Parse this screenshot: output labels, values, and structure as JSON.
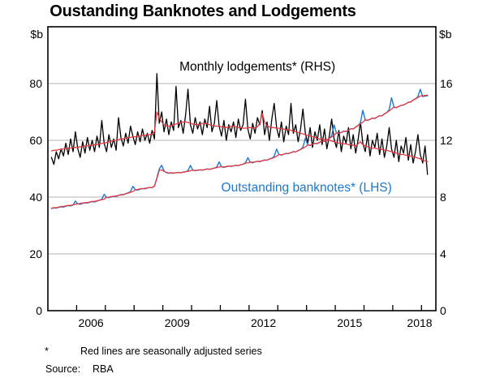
{
  "title": "Oustanding Banknotes and Lodgements",
  "footnote": {
    "symbol": "*",
    "text": "Red lines are seasonally adjusted series"
  },
  "source": {
    "label": "Source:",
    "value": "RBA"
  },
  "colors": {
    "blue": "#1e78cc",
    "red": "#e63940",
    "black": "#000000",
    "grid": "#b0b0b0",
    "axis": "#000000"
  },
  "chart_data": {
    "type": "line",
    "title": "Oustanding Banknotes and Lodgements",
    "grid": "horizontal",
    "legend_position": "none",
    "left_axis": {
      "unit_label": "$b",
      "ticks": [
        0,
        20,
        40,
        60,
        80
      ],
      "range": [
        0,
        100
      ]
    },
    "right_axis": {
      "unit_label": "$b",
      "ticks": [
        0,
        4,
        8,
        12,
        16
      ],
      "range": [
        0,
        20
      ]
    },
    "x_axis": {
      "range": [
        2005,
        2018.5
      ],
      "year_labels": [
        "2006",
        "2009",
        "2012",
        "2015",
        "2018"
      ],
      "label_centers": [
        2006.5,
        2009.5,
        2012.5,
        2015.5,
        2018.5
      ],
      "tick_years": [
        2006,
        2007,
        2008,
        2009,
        2010,
        2011,
        2012,
        2013,
        2014,
        2015,
        2016,
        2017,
        2018
      ]
    },
    "annotations": [
      {
        "text": "Monthly lodgements* (RHS)",
        "color": "#000000",
        "x": 2012.29,
        "y_lhs": 86
      },
      {
        "text": "Outstanding banknotes* (LHS)",
        "color": "#1e78cc",
        "x": 2014.0,
        "y_lhs": 43.4
      }
    ],
    "start": {
      "year": 2005,
      "month": 2
    },
    "frequency": "monthly",
    "series": [
      {
        "name": "Monthly lodgements",
        "axis": "RHS",
        "color": "#000000",
        "width": 1.3,
        "values": [
          10.8,
          10.3,
          11.2,
          10.7,
          11.4,
          10.9,
          11.8,
          11.0,
          12.1,
          11.2,
          12.6,
          11.4,
          10.8,
          11.9,
          11.1,
          12.2,
          11.3,
          12.0,
          11.2,
          12.3,
          11.5,
          13.4,
          11.8,
          11.2,
          12.4,
          11.5,
          12.1,
          11.3,
          13.6,
          12.2,
          11.6,
          12.5,
          11.8,
          13.0,
          12.3,
          11.7,
          12.6,
          11.9,
          12.8,
          12.0,
          12.5,
          11.8,
          12.7,
          12.1,
          16.7,
          13.2,
          14.0,
          12.6,
          13.5,
          12.4,
          13.3,
          12.7,
          15.8,
          12.9,
          13.4,
          12.5,
          13.8,
          15.6,
          13.1,
          12.5,
          13.6,
          12.8,
          13.3,
          12.4,
          13.5,
          12.9,
          14.4,
          12.6,
          13.2,
          14.8,
          13.0,
          12.3,
          13.4,
          12.0,
          13.1,
          12.6,
          13.3,
          12.2,
          13.5,
          12.7,
          13.1,
          14.9,
          12.8,
          12.1,
          13.2,
          12.5,
          13.6,
          13.1,
          14.1,
          12.4,
          13.3,
          12.0,
          13.5,
          14.6,
          12.9,
          12.2,
          13.3,
          11.9,
          13.0,
          12.4,
          14.6,
          12.5,
          13.1,
          11.9,
          12.8,
          14.2,
          12.5,
          11.8,
          12.9,
          11.5,
          12.6,
          12.0,
          13.1,
          11.7,
          12.8,
          11.4,
          12.3,
          13.5,
          12.1,
          11.5,
          12.7,
          11.2,
          12.3,
          11.8,
          12.9,
          11.4,
          12.4,
          11.1,
          12.0,
          13.3,
          11.8,
          11.2,
          12.4,
          10.9,
          12.0,
          11.5,
          12.5,
          11.0,
          12.1,
          10.8,
          11.6,
          12.9,
          11.4,
          10.8,
          12.0,
          10.5,
          11.6,
          11.1,
          12.2,
          10.6,
          11.7,
          10.4,
          11.2,
          12.4,
          11.0,
          10.4,
          11.6,
          9.6
        ]
      },
      {
        "name": "Outstanding banknotes",
        "axis": "LHS",
        "color": "#1e78cc",
        "width": 1.4,
        "values": [
          36.0,
          36.2,
          36.1,
          36.4,
          36.6,
          36.5,
          36.8,
          37.0,
          36.9,
          37.2,
          38.6,
          37.6,
          37.5,
          37.8,
          38.0,
          37.9,
          38.2,
          38.4,
          38.3,
          38.6,
          38.9,
          39.2,
          41.0,
          39.9,
          39.8,
          40.1,
          40.3,
          40.2,
          40.6,
          40.9,
          40.8,
          41.2,
          41.5,
          41.9,
          43.8,
          42.6,
          42.5,
          42.8,
          43.0,
          42.9,
          43.2,
          43.4,
          43.3,
          43.9,
          46.8,
          49.9,
          51.2,
          49.2,
          48.6,
          48.4,
          48.5,
          48.4,
          48.6,
          48.7,
          48.6,
          48.8,
          48.9,
          49.3,
          51.2,
          49.5,
          49.3,
          49.5,
          49.6,
          49.5,
          49.7,
          49.9,
          49.8,
          50.0,
          50.2,
          50.6,
          52.4,
          50.7,
          50.5,
          50.7,
          50.9,
          50.8,
          51.0,
          51.2,
          51.1,
          51.4,
          51.6,
          52.1,
          53.9,
          52.3,
          52.1,
          52.4,
          52.6,
          52.5,
          52.8,
          53.1,
          53.0,
          53.4,
          53.7,
          54.4,
          56.9,
          55.0,
          54.8,
          55.1,
          55.4,
          55.3,
          55.7,
          56.0,
          55.9,
          56.4,
          56.8,
          57.6,
          60.8,
          58.4,
          58.2,
          58.6,
          58.9,
          58.8,
          59.3,
          59.7,
          59.6,
          60.2,
          60.7,
          61.6,
          65.5,
          62.6,
          62.4,
          62.8,
          63.2,
          63.1,
          63.6,
          64.1,
          64.0,
          64.7,
          65.2,
          66.2,
          70.6,
          67.2,
          67.0,
          67.4,
          67.8,
          67.7,
          68.2,
          68.7,
          68.6,
          69.3,
          69.8,
          70.8,
          75.0,
          71.7,
          71.5,
          71.9,
          72.3,
          72.4,
          72.9,
          73.4,
          73.5,
          74.2,
          74.6,
          75.4,
          78.0,
          75.4,
          75.6,
          75.7
        ]
      },
      {
        "name": "Outstanding banknotes (seasonally adjusted)",
        "axis": "LHS",
        "color": "#e63940",
        "width": 1.3,
        "values": [
          36.1,
          36.3,
          36.3,
          36.5,
          36.7,
          36.7,
          36.9,
          37.1,
          37.1,
          37.3,
          37.5,
          37.6,
          37.8,
          37.9,
          38.1,
          38.1,
          38.3,
          38.5,
          38.5,
          38.7,
          38.9,
          39.1,
          39.3,
          39.9,
          40.0,
          40.2,
          40.3,
          40.4,
          40.6,
          40.8,
          40.9,
          41.2,
          41.4,
          41.7,
          41.9,
          42.6,
          42.7,
          42.9,
          43.0,
          43.1,
          43.2,
          43.4,
          43.4,
          43.9,
          46.5,
          49.4,
          49.6,
          49.1,
          48.7,
          48.5,
          48.6,
          48.5,
          48.6,
          48.7,
          48.6,
          48.8,
          48.9,
          49.1,
          49.3,
          49.5,
          49.4,
          49.5,
          49.6,
          49.6,
          49.7,
          49.9,
          49.8,
          50.0,
          50.2,
          50.4,
          50.6,
          50.7,
          50.6,
          50.8,
          50.9,
          50.9,
          51.0,
          51.2,
          51.1,
          51.4,
          51.6,
          51.9,
          52.1,
          52.3,
          52.3,
          52.4,
          52.6,
          52.6,
          52.8,
          53.0,
          53.0,
          53.4,
          53.7,
          54.0,
          54.4,
          55.0,
          54.9,
          55.1,
          55.4,
          55.4,
          55.7,
          56.0,
          55.9,
          56.4,
          56.8,
          57.2,
          57.7,
          58.4,
          58.3,
          58.6,
          58.9,
          58.9,
          59.3,
          59.7,
          59.6,
          60.2,
          60.7,
          61.2,
          61.8,
          62.6,
          62.5,
          62.8,
          63.2,
          63.2,
          63.6,
          64.1,
          64.0,
          64.7,
          65.2,
          65.8,
          66.4,
          67.2,
          67.1,
          67.4,
          67.8,
          67.8,
          68.2,
          68.7,
          68.6,
          69.3,
          69.8,
          70.4,
          71.0,
          71.7,
          71.6,
          71.9,
          72.3,
          72.5,
          72.9,
          73.4,
          73.5,
          74.2,
          74.6,
          75.1,
          75.6,
          75.7,
          75.8,
          75.9
        ]
      },
      {
        "name": "Monthly lodgements (seasonally adjusted)",
        "axis": "RHS",
        "color": "#e63940",
        "width": 1.3,
        "values": [
          11.25,
          11.3,
          11.3,
          11.35,
          11.35,
          11.4,
          11.4,
          11.45,
          11.45,
          11.5,
          11.5,
          11.5,
          11.55,
          11.55,
          11.6,
          11.6,
          11.65,
          11.65,
          11.7,
          11.7,
          11.75,
          11.8,
          11.8,
          11.85,
          11.9,
          11.95,
          12.0,
          12.0,
          12.05,
          12.1,
          12.1,
          12.15,
          12.2,
          12.2,
          12.25,
          12.25,
          12.3,
          12.3,
          12.35,
          12.35,
          12.4,
          12.4,
          12.45,
          12.6,
          14.0,
          13.6,
          13.3,
          13.1,
          13.0,
          13.0,
          13.05,
          13.1,
          13.15,
          13.2,
          13.25,
          13.3,
          13.3,
          13.25,
          13.2,
          13.15,
          13.1,
          13.1,
          13.15,
          13.2,
          13.2,
          13.15,
          13.1,
          13.05,
          13.0,
          13.0,
          13.0,
          12.95,
          12.9,
          12.9,
          12.95,
          13.0,
          13.0,
          12.95,
          12.9,
          12.9,
          12.85,
          12.85,
          12.9,
          12.9,
          12.85,
          12.9,
          12.95,
          13.2,
          13.9,
          13.3,
          13.0,
          12.95,
          12.9,
          12.9,
          12.85,
          12.85,
          12.8,
          12.8,
          12.75,
          12.75,
          12.7,
          12.65,
          12.6,
          12.55,
          12.5,
          12.45,
          12.4,
          12.35,
          12.3,
          12.25,
          12.2,
          12.15,
          12.1,
          12.1,
          12.05,
          12.0,
          12.0,
          11.95,
          11.9,
          11.85,
          11.8,
          11.8,
          11.75,
          11.75,
          11.7,
          11.7,
          11.65,
          11.6,
          11.75,
          11.9,
          11.7,
          11.6,
          11.55,
          11.5,
          11.45,
          11.45,
          11.4,
          11.4,
          11.35,
          11.3,
          11.3,
          11.25,
          11.2,
          11.15,
          11.1,
          11.05,
          11.0,
          11.0,
          10.95,
          10.9,
          10.9,
          10.85,
          10.8,
          10.75,
          10.7,
          10.6,
          10.55,
          10.5
        ]
      }
    ]
  }
}
